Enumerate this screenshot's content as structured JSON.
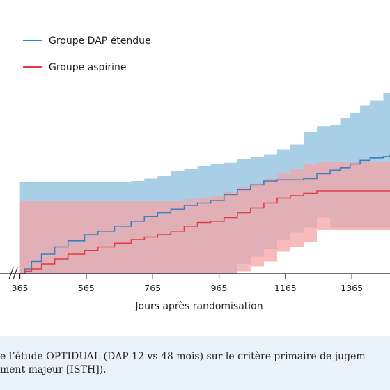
{
  "chart_data": {
    "type": "line",
    "xlabel": "Jours après randomisation",
    "x_ticks": [
      365,
      565,
      765,
      965,
      1165,
      1365
    ],
    "xlim": [
      305,
      1480
    ],
    "ylim": [
      0,
      1
    ],
    "legend_placement": "top-left",
    "series": [
      {
        "name": "Groupe DAP étendue",
        "color": "#3a7fc1",
        "ci_color": "#a8cfe6",
        "x": [
          365,
          380,
          400,
          430,
          470,
          510,
          560,
          600,
          650,
          700,
          740,
          780,
          820,
          860,
          900,
          940,
          980,
          1020,
          1060,
          1100,
          1140,
          1180,
          1220,
          1260,
          1300,
          1330,
          1360,
          1390,
          1420,
          1460,
          1480
        ],
        "y": [
          0.0,
          0.02,
          0.05,
          0.08,
          0.11,
          0.135,
          0.16,
          0.175,
          0.195,
          0.215,
          0.235,
          0.25,
          0.265,
          0.28,
          0.29,
          0.3,
          0.325,
          0.345,
          0.365,
          0.38,
          0.385,
          0.385,
          0.39,
          0.41,
          0.425,
          0.435,
          0.45,
          0.465,
          0.475,
          0.48,
          0.49
        ],
        "ci_lower": [
          0.0,
          0.0,
          0.0,
          0.0,
          0.0,
          0.0,
          0.0,
          0.0,
          0.0,
          0.0,
          0.0,
          0.0,
          0.0,
          0.0,
          0.0,
          0.0,
          0.0,
          0.04,
          0.07,
          0.1,
          0.14,
          0.17,
          0.19,
          0.23,
          0.19,
          0.19,
          0.19,
          0.19,
          0.19,
          0.19,
          0.19
        ],
        "ci_upper": [
          0.375,
          0.375,
          0.375,
          0.375,
          0.375,
          0.375,
          0.375,
          0.375,
          0.375,
          0.38,
          0.39,
          0.4,
          0.42,
          0.43,
          0.44,
          0.45,
          0.455,
          0.47,
          0.48,
          0.49,
          0.51,
          0.53,
          0.58,
          0.605,
          0.61,
          0.64,
          0.66,
          0.69,
          0.71,
          0.74,
          0.77
        ]
      },
      {
        "name": "Groupe aspirine",
        "color": "#e03c40",
        "ci_color": "#f4a4a6",
        "x": [
          365,
          380,
          400,
          430,
          470,
          510,
          560,
          600,
          650,
          700,
          740,
          780,
          820,
          860,
          900,
          940,
          980,
          1020,
          1060,
          1100,
          1140,
          1180,
          1220,
          1260,
          1300,
          1480
        ],
        "y": [
          0.0,
          0.01,
          0.02,
          0.04,
          0.06,
          0.08,
          0.095,
          0.11,
          0.125,
          0.14,
          0.15,
          0.16,
          0.175,
          0.195,
          0.21,
          0.215,
          0.23,
          0.25,
          0.27,
          0.29,
          0.31,
          0.32,
          0.33,
          0.34,
          0.34,
          0.34
        ],
        "ci_lower": [
          0.0,
          0.0,
          0.0,
          0.0,
          0.0,
          0.0,
          0.0,
          0.0,
          0.0,
          0.0,
          0.0,
          0.0,
          0.0,
          0.0,
          0.0,
          0.0,
          0.0,
          0.01,
          0.03,
          0.05,
          0.09,
          0.11,
          0.13,
          0.18,
          0.18,
          0.18
        ],
        "ci_upper": [
          0.3,
          0.3,
          0.3,
          0.3,
          0.3,
          0.3,
          0.3,
          0.3,
          0.3,
          0.3,
          0.3,
          0.3,
          0.3,
          0.305,
          0.31,
          0.32,
          0.335,
          0.355,
          0.37,
          0.39,
          0.41,
          0.43,
          0.45,
          0.46,
          0.46,
          0.46
        ]
      }
    ]
  },
  "caption": {
    "line1": "e l’étude OPTIDUAL (DAP 12 vs 48 mois) sur le critère primaire de jugem",
    "line2": "ment majeur [ISTH])."
  }
}
